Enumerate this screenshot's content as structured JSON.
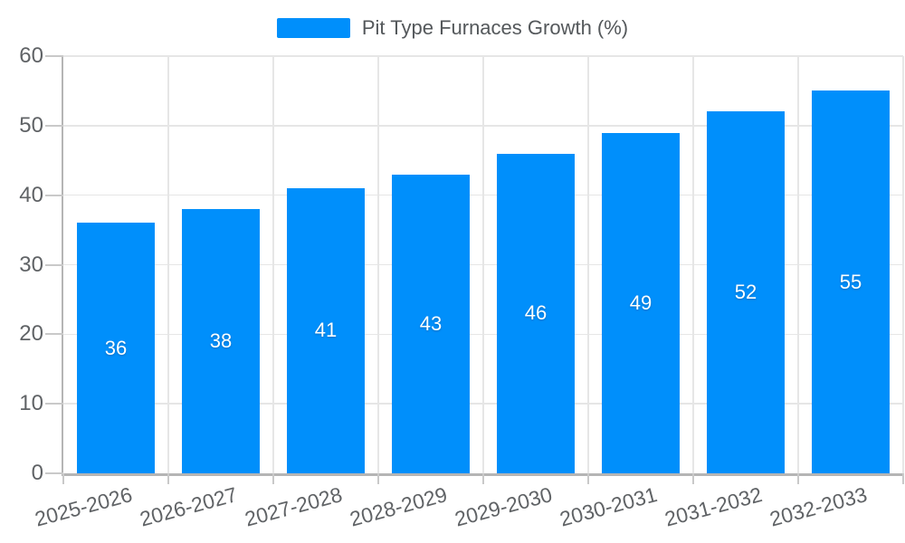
{
  "legend": {
    "label": "Pit Type Furnaces Growth (%)"
  },
  "chart_data": {
    "type": "bar",
    "title": "Pit Type Furnaces Growth (%)",
    "series_name": "Pit Type Furnaces Growth (%)",
    "categories": [
      "2025-2026",
      "2026-2027",
      "2027-2028",
      "2028-2029",
      "2029-2030",
      "2030-2031",
      "2031-2032",
      "2032-2033"
    ],
    "values": [
      36,
      38,
      41,
      43,
      46,
      49,
      52,
      55
    ],
    "data_labels": [
      "36",
      "38",
      "41",
      "43",
      "46",
      "49",
      "52",
      "55"
    ],
    "xlabel": "",
    "ylabel": "",
    "ylim": [
      0,
      60
    ],
    "yticks": [
      0,
      10,
      20,
      30,
      40,
      50,
      60
    ],
    "grid": true,
    "legend_position": "top",
    "x_label_rotation_deg": -15,
    "colors": {
      "bar": "#008FFB",
      "grid": "#E6E6E6",
      "axis": "#B5B5B5",
      "tick": "#C9C9C9",
      "axis_label": "#606366",
      "legend_text": "#54585B",
      "data_label": "#FFFFFF",
      "background": "#FFFFFF"
    }
  }
}
